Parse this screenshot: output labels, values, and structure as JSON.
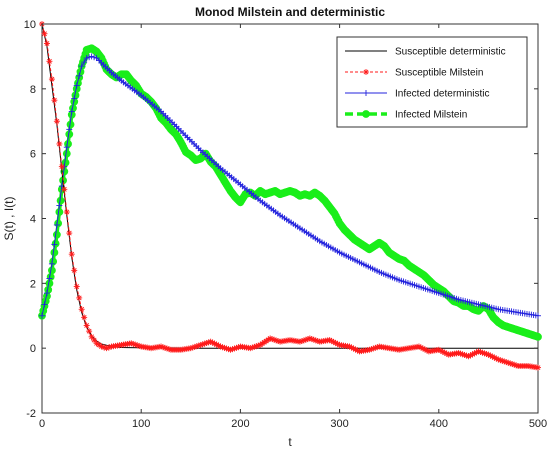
{
  "chart_data": {
    "type": "line",
    "title": "Monod Milstein and deterministic",
    "xlabel": "t",
    "ylabel": "S(t) , I(t)",
    "xlim": [
      0,
      500
    ],
    "ylim": [
      -2,
      10
    ],
    "xticks": [
      "0",
      "100",
      "200",
      "300",
      "400",
      "500"
    ],
    "yticks": [
      "-2",
      "0",
      "2",
      "4",
      "6",
      "8",
      "10"
    ],
    "grid": false,
    "legend_position": "top-right",
    "series": [
      {
        "name": "Susceptible deterministic",
        "color": "#000000",
        "style": "solid",
        "marker": "none",
        "points": [
          [
            0,
            10
          ],
          [
            5,
            9.3
          ],
          [
            10,
            8.1
          ],
          [
            15,
            6.9
          ],
          [
            20,
            5.5
          ],
          [
            25,
            4.1
          ],
          [
            30,
            2.8
          ],
          [
            35,
            1.8
          ],
          [
            40,
            1.1
          ],
          [
            45,
            0.65
          ],
          [
            50,
            0.38
          ],
          [
            55,
            0.22
          ],
          [
            60,
            0.13
          ],
          [
            70,
            0.05
          ],
          [
            80,
            0.02
          ],
          [
            100,
            0.01
          ],
          [
            150,
            0.0
          ],
          [
            200,
            0.0
          ],
          [
            300,
            0.0
          ],
          [
            400,
            0.0
          ],
          [
            500,
            0.0
          ]
        ]
      },
      {
        "name": "Susceptible Milstein",
        "color": "#ff1a1a",
        "style": "dashed",
        "marker": "star",
        "points": [
          [
            0,
            10
          ],
          [
            5,
            9.4
          ],
          [
            10,
            8.3
          ],
          [
            15,
            7.0
          ],
          [
            20,
            5.6
          ],
          [
            25,
            4.2
          ],
          [
            30,
            2.9
          ],
          [
            35,
            1.9
          ],
          [
            40,
            1.2
          ],
          [
            45,
            0.7
          ],
          [
            50,
            0.35
          ],
          [
            55,
            0.15
          ],
          [
            60,
            0.05
          ],
          [
            65,
            0.0
          ],
          [
            70,
            0.05
          ],
          [
            80,
            0.1
          ],
          [
            90,
            0.15
          ],
          [
            100,
            0.05
          ],
          [
            110,
            0.0
          ],
          [
            120,
            0.05
          ],
          [
            130,
            -0.05
          ],
          [
            140,
            -0.05
          ],
          [
            150,
            0.0
          ],
          [
            160,
            0.1
          ],
          [
            170,
            0.2
          ],
          [
            180,
            0.05
          ],
          [
            190,
            -0.05
          ],
          [
            200,
            0.05
          ],
          [
            210,
            0.0
          ],
          [
            220,
            0.1
          ],
          [
            230,
            0.3
          ],
          [
            240,
            0.2
          ],
          [
            250,
            0.25
          ],
          [
            260,
            0.2
          ],
          [
            270,
            0.3
          ],
          [
            280,
            0.2
          ],
          [
            290,
            0.25
          ],
          [
            300,
            0.1
          ],
          [
            310,
            0.05
          ],
          [
            320,
            -0.1
          ],
          [
            330,
            -0.05
          ],
          [
            340,
            0.05
          ],
          [
            350,
            0.0
          ],
          [
            360,
            -0.05
          ],
          [
            370,
            0.0
          ],
          [
            380,
            0.05
          ],
          [
            390,
            -0.1
          ],
          [
            400,
            -0.05
          ],
          [
            410,
            -0.2
          ],
          [
            420,
            -0.15
          ],
          [
            430,
            -0.25
          ],
          [
            440,
            -0.1
          ],
          [
            450,
            -0.2
          ],
          [
            460,
            -0.35
          ],
          [
            470,
            -0.45
          ],
          [
            480,
            -0.55
          ],
          [
            490,
            -0.55
          ],
          [
            500,
            -0.6
          ]
        ]
      },
      {
        "name": "Infected deterministic",
        "color": "#2323dd",
        "style": "solid",
        "marker": "plus",
        "points": [
          [
            0,
            1.0
          ],
          [
            5,
            1.7
          ],
          [
            10,
            2.6
          ],
          [
            15,
            3.8
          ],
          [
            20,
            5.0
          ],
          [
            25,
            6.2
          ],
          [
            30,
            7.3
          ],
          [
            35,
            8.1
          ],
          [
            40,
            8.7
          ],
          [
            45,
            8.95
          ],
          [
            50,
            9.0
          ],
          [
            55,
            8.95
          ],
          [
            60,
            8.8
          ],
          [
            70,
            8.5
          ],
          [
            80,
            8.25
          ],
          [
            100,
            7.8
          ],
          [
            120,
            7.3
          ],
          [
            140,
            6.7
          ],
          [
            160,
            6.1
          ],
          [
            180,
            5.55
          ],
          [
            200,
            5.05
          ],
          [
            220,
            4.55
          ],
          [
            240,
            4.1
          ],
          [
            260,
            3.7
          ],
          [
            280,
            3.3
          ],
          [
            300,
            2.95
          ],
          [
            320,
            2.65
          ],
          [
            340,
            2.35
          ],
          [
            360,
            2.1
          ],
          [
            380,
            1.9
          ],
          [
            400,
            1.7
          ],
          [
            420,
            1.5
          ],
          [
            440,
            1.35
          ],
          [
            460,
            1.2
          ],
          [
            480,
            1.1
          ],
          [
            500,
            1.0
          ]
        ]
      },
      {
        "name": "Infected Milstein",
        "color": "#1aee1a",
        "style": "dashed",
        "marker": "circle",
        "points": [
          [
            0,
            1.0
          ],
          [
            5,
            1.6
          ],
          [
            10,
            2.4
          ],
          [
            15,
            3.5
          ],
          [
            20,
            4.9
          ],
          [
            25,
            6.0
          ],
          [
            30,
            7.2
          ],
          [
            35,
            8.0
          ],
          [
            40,
            8.7
          ],
          [
            45,
            9.2
          ],
          [
            50,
            9.25
          ],
          [
            55,
            9.15
          ],
          [
            60,
            8.95
          ],
          [
            65,
            8.6
          ],
          [
            70,
            8.45
          ],
          [
            75,
            8.35
          ],
          [
            80,
            8.45
          ],
          [
            85,
            8.45
          ],
          [
            90,
            8.25
          ],
          [
            95,
            8.1
          ],
          [
            100,
            7.85
          ],
          [
            105,
            7.75
          ],
          [
            110,
            7.6
          ],
          [
            115,
            7.4
          ],
          [
            120,
            7.1
          ],
          [
            125,
            6.95
          ],
          [
            130,
            6.75
          ],
          [
            135,
            6.6
          ],
          [
            140,
            6.35
          ],
          [
            145,
            6.05
          ],
          [
            150,
            5.95
          ],
          [
            155,
            5.8
          ],
          [
            160,
            5.85
          ],
          [
            165,
            6.0
          ],
          [
            170,
            5.75
          ],
          [
            175,
            5.6
          ],
          [
            180,
            5.35
          ],
          [
            185,
            5.1
          ],
          [
            190,
            4.85
          ],
          [
            195,
            4.65
          ],
          [
            200,
            4.5
          ],
          [
            205,
            4.75
          ],
          [
            210,
            4.8
          ],
          [
            215,
            4.7
          ],
          [
            220,
            4.85
          ],
          [
            225,
            4.75
          ],
          [
            230,
            4.8
          ],
          [
            235,
            4.85
          ],
          [
            240,
            4.75
          ],
          [
            245,
            4.8
          ],
          [
            250,
            4.85
          ],
          [
            255,
            4.8
          ],
          [
            260,
            4.7
          ],
          [
            265,
            4.75
          ],
          [
            270,
            4.7
          ],
          [
            275,
            4.8
          ],
          [
            280,
            4.7
          ],
          [
            285,
            4.55
          ],
          [
            290,
            4.35
          ],
          [
            295,
            4.15
          ],
          [
            300,
            3.85
          ],
          [
            305,
            3.65
          ],
          [
            310,
            3.5
          ],
          [
            315,
            3.35
          ],
          [
            320,
            3.25
          ],
          [
            325,
            3.15
          ],
          [
            330,
            3.05
          ],
          [
            335,
            3.15
          ],
          [
            340,
            3.25
          ],
          [
            345,
            3.15
          ],
          [
            350,
            2.95
          ],
          [
            355,
            2.85
          ],
          [
            360,
            2.75
          ],
          [
            365,
            2.7
          ],
          [
            370,
            2.55
          ],
          [
            375,
            2.45
          ],
          [
            380,
            2.35
          ],
          [
            385,
            2.25
          ],
          [
            390,
            2.1
          ],
          [
            395,
            1.95
          ],
          [
            400,
            1.85
          ],
          [
            405,
            1.75
          ],
          [
            410,
            1.6
          ],
          [
            415,
            1.45
          ],
          [
            420,
            1.4
          ],
          [
            425,
            1.3
          ],
          [
            430,
            1.3
          ],
          [
            435,
            1.2
          ],
          [
            440,
            1.15
          ],
          [
            445,
            1.3
          ],
          [
            450,
            1.2
          ],
          [
            455,
            0.95
          ],
          [
            460,
            0.8
          ],
          [
            465,
            0.7
          ],
          [
            470,
            0.65
          ],
          [
            475,
            0.6
          ],
          [
            480,
            0.55
          ],
          [
            485,
            0.5
          ],
          [
            490,
            0.45
          ],
          [
            495,
            0.4
          ],
          [
            500,
            0.35
          ]
        ]
      }
    ]
  }
}
